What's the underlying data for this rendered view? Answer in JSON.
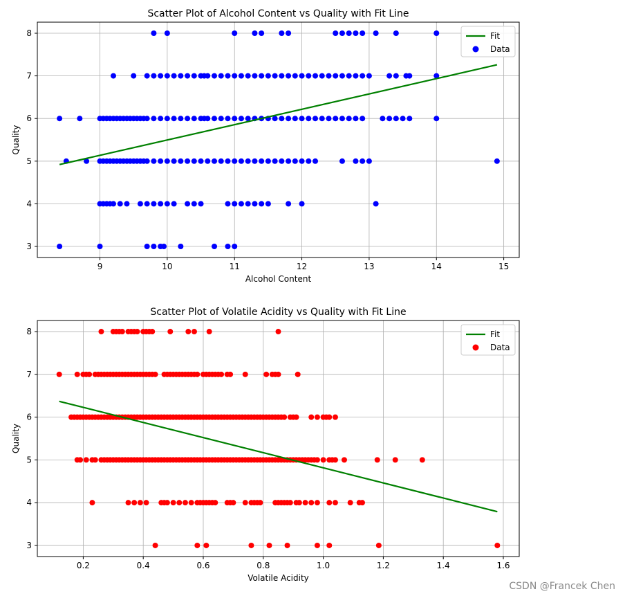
{
  "watermark": "CSDN @Francek Chen",
  "chart_data": [
    {
      "type": "scatter",
      "title": "Scatter Plot of Alcohol Content vs Quality with Fit Line",
      "xlabel": "Alcohol Content",
      "ylabel": "Quality",
      "xlim": [
        8.07,
        15.23
      ],
      "ylim": [
        2.74,
        8.26
      ],
      "xticks": [
        9,
        10,
        11,
        12,
        13,
        14,
        15
      ],
      "xtick_labels": [
        "9",
        "10",
        "11",
        "12",
        "13",
        "14",
        "15"
      ],
      "yticks": [
        3,
        4,
        5,
        6,
        7,
        8
      ],
      "ytick_labels": [
        "3",
        "4",
        "5",
        "6",
        "7",
        "8"
      ],
      "grid": true,
      "legend_position": "top-right",
      "colors": {
        "points": "#0000ff",
        "fit": "#008000"
      },
      "series": [
        {
          "name": "Data",
          "kind": "points",
          "groups": [
            {
              "y": 3,
              "x": [
                8.4,
                9.0,
                9.7,
                9.8,
                9.9,
                9.95,
                10.2,
                10.7,
                10.9,
                11.0
              ]
            },
            {
              "y": 4,
              "x": [
                9.0,
                9.05,
                9.1,
                9.15,
                9.2,
                9.3,
                9.4,
                9.6,
                9.7,
                9.8,
                9.9,
                10.0,
                10.1,
                10.3,
                10.4,
                10.5,
                10.9,
                11.0,
                11.1,
                11.2,
                11.3,
                11.4,
                11.5,
                11.8,
                12.0,
                13.1
              ]
            },
            {
              "y": 5,
              "x": [
                8.5,
                8.8,
                9.0,
                9.05,
                9.1,
                9.15,
                9.2,
                9.25,
                9.3,
                9.35,
                9.4,
                9.45,
                9.5,
                9.55,
                9.6,
                9.65,
                9.7,
                9.8,
                9.9,
                10.0,
                10.1,
                10.2,
                10.3,
                10.4,
                10.5,
                10.6,
                10.7,
                10.8,
                10.9,
                11.0,
                11.1,
                11.2,
                11.3,
                11.4,
                11.5,
                11.6,
                11.7,
                11.8,
                11.9,
                12.0,
                12.1,
                12.2,
                12.6,
                12.8,
                12.9,
                13.0,
                14.9
              ]
            },
            {
              "y": 6,
              "x": [
                8.4,
                8.7,
                9.0,
                9.05,
                9.1,
                9.15,
                9.2,
                9.25,
                9.3,
                9.35,
                9.4,
                9.45,
                9.5,
                9.55,
                9.6,
                9.65,
                9.7,
                9.8,
                9.9,
                10.0,
                10.1,
                10.2,
                10.3,
                10.4,
                10.5,
                10.55,
                10.6,
                10.7,
                10.8,
                10.9,
                11.0,
                11.1,
                11.2,
                11.3,
                11.4,
                11.5,
                11.6,
                11.7,
                11.8,
                11.9,
                12.0,
                12.1,
                12.2,
                12.3,
                12.4,
                12.5,
                12.6,
                12.7,
                12.8,
                12.9,
                13.2,
                13.3,
                13.4,
                13.5,
                13.6,
                14.0
              ]
            },
            {
              "y": 7,
              "x": [
                9.2,
                9.5,
                9.7,
                9.8,
                9.9,
                10.0,
                10.1,
                10.2,
                10.3,
                10.4,
                10.5,
                10.55,
                10.6,
                10.7,
                10.8,
                10.9,
                11.0,
                11.1,
                11.2,
                11.3,
                11.4,
                11.5,
                11.6,
                11.7,
                11.8,
                11.9,
                12.0,
                12.1,
                12.2,
                12.3,
                12.4,
                12.5,
                12.6,
                12.7,
                12.8,
                12.9,
                13.0,
                13.3,
                13.4,
                13.55,
                13.6,
                14.0
              ]
            },
            {
              "y": 8,
              "x": [
                9.8,
                10.0,
                11.0,
                11.3,
                11.4,
                11.7,
                11.8,
                12.5,
                12.6,
                12.7,
                12.8,
                12.9,
                13.1,
                13.4,
                14.0
              ]
            }
          ]
        },
        {
          "name": "Fit",
          "kind": "line",
          "x": [
            8.4,
            14.9
          ],
          "y": [
            4.92,
            7.26
          ]
        }
      ]
    },
    {
      "type": "scatter",
      "title": "Scatter Plot of Volatile Acidity vs Quality with Fit Line",
      "xlabel": "Volatile Acidity",
      "ylabel": "Quality",
      "xlim": [
        0.047,
        1.653
      ],
      "ylim": [
        2.74,
        8.26
      ],
      "xticks": [
        0.2,
        0.4,
        0.6,
        0.8,
        1.0,
        1.2,
        1.4,
        1.6
      ],
      "xtick_labels": [
        "0.2",
        "0.4",
        "0.6",
        "0.8",
        "1.0",
        "1.2",
        "1.4",
        "1.6"
      ],
      "yticks": [
        3,
        4,
        5,
        6,
        7,
        8
      ],
      "ytick_labels": [
        "3",
        "4",
        "5",
        "6",
        "7",
        "8"
      ],
      "grid": true,
      "legend_position": "top-right",
      "colors": {
        "points": "#ff0000",
        "fit": "#008000"
      },
      "series": [
        {
          "name": "Data",
          "kind": "points",
          "groups": [
            {
              "y": 3,
              "x": [
                0.44,
                0.58,
                0.61,
                0.76,
                0.82,
                0.88,
                0.98,
                1.02,
                1.185,
                1.58
              ]
            },
            {
              "y": 4,
              "x": [
                0.23,
                0.35,
                0.37,
                0.39,
                0.41,
                0.46,
                0.47,
                0.48,
                0.5,
                0.52,
                0.54,
                0.56,
                0.58,
                0.59,
                0.6,
                0.61,
                0.62,
                0.63,
                0.64,
                0.68,
                0.69,
                0.7,
                0.74,
                0.76,
                0.77,
                0.78,
                0.79,
                0.84,
                0.85,
                0.86,
                0.87,
                0.88,
                0.89,
                0.91,
                0.92,
                0.94,
                0.96,
                0.98,
                1.02,
                1.04,
                1.09,
                1.12,
                1.13
              ]
            },
            {
              "y": 5,
              "x": [
                0.18,
                0.19,
                0.21,
                0.23,
                0.24,
                0.26,
                0.27,
                0.28,
                0.29,
                0.3,
                0.31,
                0.32,
                0.33,
                0.34,
                0.35,
                0.36,
                0.37,
                0.38,
                0.39,
                0.4,
                0.41,
                0.42,
                0.43,
                0.44,
                0.45,
                0.46,
                0.47,
                0.48,
                0.49,
                0.5,
                0.51,
                0.52,
                0.53,
                0.54,
                0.55,
                0.56,
                0.57,
                0.58,
                0.59,
                0.6,
                0.61,
                0.62,
                0.63,
                0.64,
                0.65,
                0.66,
                0.67,
                0.68,
                0.69,
                0.7,
                0.71,
                0.72,
                0.73,
                0.74,
                0.75,
                0.76,
                0.77,
                0.78,
                0.79,
                0.8,
                0.81,
                0.82,
                0.83,
                0.84,
                0.85,
                0.86,
                0.87,
                0.88,
                0.89,
                0.9,
                0.91,
                0.92,
                0.93,
                0.94,
                0.95,
                0.96,
                0.97,
                0.98,
                1.0,
                1.02,
                1.03,
                1.04,
                1.07,
                1.18,
                1.24,
                1.33
              ]
            },
            {
              "y": 6,
              "x": [
                0.16,
                0.17,
                0.18,
                0.19,
                0.2,
                0.21,
                0.22,
                0.23,
                0.24,
                0.25,
                0.26,
                0.27,
                0.28,
                0.29,
                0.3,
                0.31,
                0.32,
                0.33,
                0.34,
                0.35,
                0.36,
                0.37,
                0.38,
                0.39,
                0.4,
                0.41,
                0.42,
                0.43,
                0.44,
                0.45,
                0.46,
                0.47,
                0.48,
                0.49,
                0.5,
                0.51,
                0.52,
                0.53,
                0.54,
                0.55,
                0.56,
                0.57,
                0.58,
                0.59,
                0.6,
                0.61,
                0.62,
                0.63,
                0.64,
                0.65,
                0.66,
                0.67,
                0.68,
                0.69,
                0.7,
                0.71,
                0.72,
                0.73,
                0.74,
                0.75,
                0.76,
                0.77,
                0.78,
                0.79,
                0.8,
                0.81,
                0.82,
                0.83,
                0.84,
                0.85,
                0.86,
                0.87,
                0.89,
                0.9,
                0.91,
                0.96,
                0.98,
                1.0,
                1.01,
                1.02,
                1.04
              ]
            },
            {
              "y": 7,
              "x": [
                0.12,
                0.18,
                0.2,
                0.21,
                0.22,
                0.24,
                0.25,
                0.26,
                0.27,
                0.28,
                0.29,
                0.3,
                0.31,
                0.32,
                0.33,
                0.34,
                0.35,
                0.36,
                0.37,
                0.38,
                0.39,
                0.4,
                0.41,
                0.42,
                0.43,
                0.44,
                0.47,
                0.48,
                0.49,
                0.5,
                0.51,
                0.52,
                0.53,
                0.54,
                0.55,
                0.56,
                0.57,
                0.58,
                0.6,
                0.61,
                0.62,
                0.63,
                0.64,
                0.65,
                0.66,
                0.68,
                0.69,
                0.74,
                0.81,
                0.83,
                0.84,
                0.85,
                0.915
              ]
            },
            {
              "y": 8,
              "x": [
                0.26,
                0.3,
                0.31,
                0.32,
                0.33,
                0.35,
                0.36,
                0.37,
                0.38,
                0.4,
                0.41,
                0.42,
                0.43,
                0.49,
                0.55,
                0.57,
                0.62,
                0.85
              ]
            }
          ]
        },
        {
          "name": "Fit",
          "kind": "line",
          "x": [
            0.12,
            1.58
          ],
          "y": [
            6.37,
            3.79
          ]
        }
      ]
    }
  ]
}
